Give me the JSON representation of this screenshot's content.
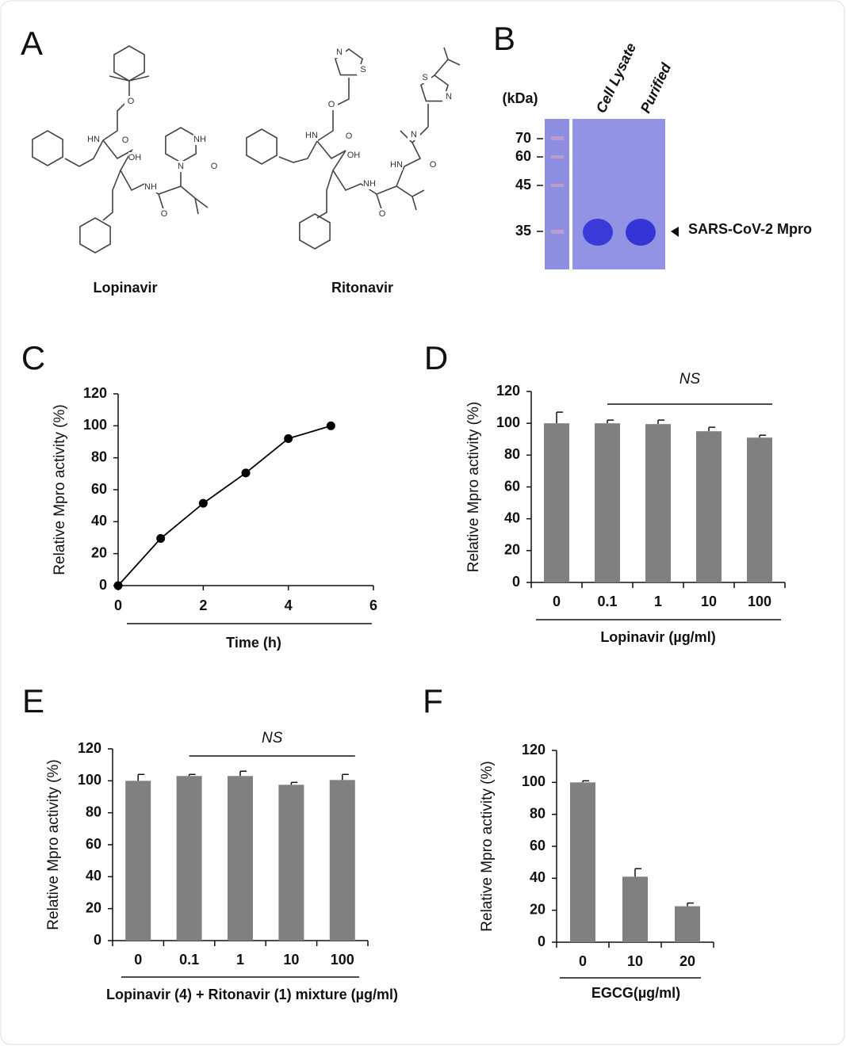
{
  "panels": [
    "A",
    "B",
    "C",
    "D",
    "E",
    "F"
  ],
  "structures": {
    "names": [
      "Lopinavir",
      "Ritonavir"
    ],
    "lopinavir_atoms": [
      "O",
      "HN",
      "O",
      "OH",
      "NH",
      "O",
      "N",
      "NH",
      "O"
    ],
    "ritonavir_atoms": [
      "N",
      "S",
      "O",
      "O",
      "HN",
      "OH",
      "NH",
      "O",
      "S",
      "N",
      "N",
      "HN",
      "O"
    ]
  },
  "gel": {
    "unit": "(kDa)",
    "lanes": [
      "Cell Lysate",
      "Purified"
    ],
    "markers": [
      70,
      60,
      45,
      35
    ],
    "band_label": "SARS-CoV-2 Mpro"
  },
  "chart_data": [
    {
      "type": "line",
      "x": [
        0,
        1,
        2,
        3,
        4,
        5
      ],
      "values": [
        0,
        29.5,
        51.5,
        70.5,
        92,
        100
      ],
      "color": "#000000",
      "xlim": [
        0,
        6
      ],
      "xticks": [
        0,
        2,
        4,
        6
      ],
      "ylim": [
        0,
        120
      ],
      "yticks": [
        0,
        20,
        40,
        60,
        80,
        100,
        120
      ],
      "xlabel": "Time (h)",
      "ylabel": "Relative Mpro activity (%)"
    },
    {
      "type": "bar",
      "categories": [
        "0",
        "0.1",
        "1",
        "10",
        "100"
      ],
      "values": [
        100,
        100,
        99.5,
        95,
        91
      ],
      "errors": [
        7,
        2,
        2.5,
        2.5,
        1.5
      ],
      "color": "#808080",
      "ylim": [
        0,
        120
      ],
      "yticks": [
        0,
        20,
        40,
        60,
        80,
        100,
        120
      ],
      "xlabel": "Lopinavir (µg/ml)",
      "ylabel": "Relative Mpro activity (%)",
      "annotation": "NS"
    },
    {
      "type": "bar",
      "categories": [
        "0",
        "0.1",
        "1",
        "10",
        "100"
      ],
      "values": [
        100,
        103,
        103,
        97.5,
        100.5
      ],
      "errors": [
        4,
        1,
        3,
        1.5,
        3.5
      ],
      "color": "#808080",
      "ylim": [
        0,
        120
      ],
      "yticks": [
        0,
        20,
        40,
        60,
        80,
        100,
        120
      ],
      "xlabel": "Lopinavir (4) + Ritonavir (1) mixture (µg/ml)",
      "ylabel": "Relative Mpro activity (%)",
      "annotation": "NS"
    },
    {
      "type": "bar",
      "categories": [
        "0",
        "10",
        "20"
      ],
      "values": [
        100,
        41,
        22.5
      ],
      "errors": [
        1,
        5,
        2
      ],
      "color": "#808080",
      "ylim": [
        0,
        120
      ],
      "yticks": [
        0,
        20,
        40,
        60,
        80,
        100,
        120
      ],
      "xlabel": "EGCG(µg/ml)",
      "ylabel": "Relative Mpro activity (%)"
    }
  ]
}
